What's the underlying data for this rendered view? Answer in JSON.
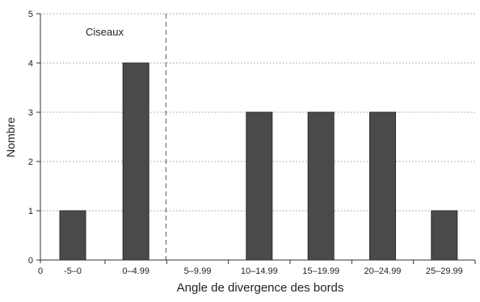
{
  "chart_data": {
    "type": "bar",
    "title": "",
    "xlabel": "Angle de divergence des bords",
    "ylabel": "Nombre",
    "categories": [
      "-5–0",
      "0–4.99",
      "5–9.99",
      "10–14.99",
      "15–19.99",
      "20–24.99",
      "25–29.99"
    ],
    "values": [
      1,
      4,
      0,
      3,
      3,
      3,
      1
    ],
    "ylim": [
      0,
      5
    ],
    "yticks": [
      "0",
      "1",
      "2",
      "3",
      "4",
      "5"
    ],
    "x_origin_label": "0",
    "grid": "horizontal dotted",
    "annotation": "Ciseaux",
    "bar_color": "#4a4a4a",
    "divider_style": "dashed vertical line between first two categories and the rest"
  }
}
